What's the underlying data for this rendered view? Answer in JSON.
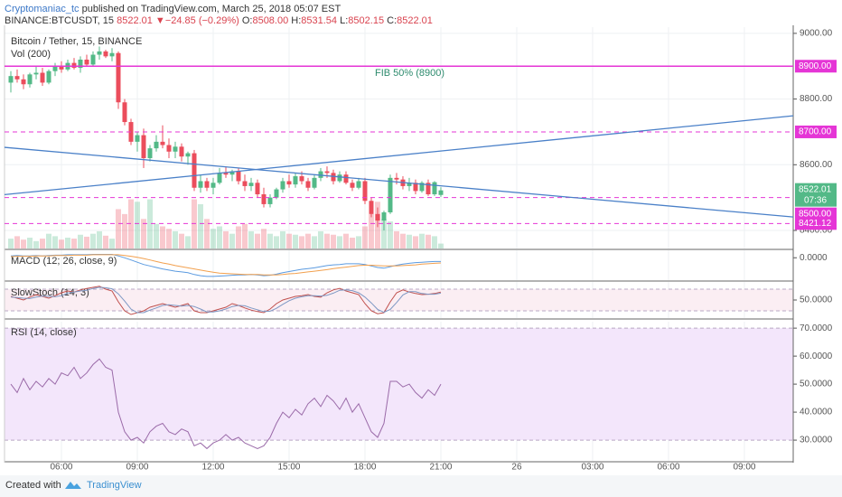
{
  "header": {
    "author": "Cryptomaniac_tc",
    "published": "published on TradingView.com, March 25, 2018 05:07 EST",
    "symbol": "BINANCE:BTCUSDT, 15",
    "arrow": "▼",
    "change": "−24.85 (−0.29%)",
    "o_label": "O:",
    "o": "8508.00",
    "h_label": "H:",
    "h": "8531.54",
    "l_label": "L:",
    "l": "8502.15",
    "c_label": "C:",
    "c": "8522.01"
  },
  "footer": {
    "created": "Created with",
    "brand": "TradingView"
  },
  "chart_data": [
    {
      "type": "candlestick",
      "title": "Bitcoin / Tether, 15, BINANCE",
      "volume_title": "Vol (200)",
      "up_color": "#53b987",
      "down_color": "#eb4d5c",
      "x": [
        4,
        4.25,
        4.5,
        4.75,
        5,
        5.25,
        5.5,
        5.75,
        6,
        6.25,
        6.5,
        6.75,
        7,
        7.25,
        7.5,
        7.75,
        8,
        8.25,
        8.5,
        8.75,
        9,
        9.25,
        9.5,
        9.75,
        10,
        10.25,
        10.5,
        10.75,
        11,
        11.25,
        11.5,
        11.75,
        12,
        12.25,
        12.5,
        12.75,
        13,
        13.25,
        13.5,
        13.75,
        14,
        14.25,
        14.5,
        14.75,
        15,
        15.25,
        15.5,
        15.75,
        16,
        16.25,
        16.5,
        16.75,
        17,
        17.25,
        17.5,
        17.75,
        18,
        18.25,
        18.5,
        18.75,
        19,
        19.25,
        19.5,
        19.75,
        20,
        20.25,
        20.5,
        20.75,
        21
      ],
      "ohlc": [
        [
          8850,
          8885,
          8820,
          8870
        ],
        [
          8870,
          8890,
          8850,
          8860
        ],
        [
          8860,
          8875,
          8830,
          8845
        ],
        [
          8845,
          8880,
          8835,
          8875
        ],
        [
          8875,
          8900,
          8860,
          8880
        ],
        [
          8880,
          8895,
          8840,
          8850
        ],
        [
          8850,
          8890,
          8845,
          8885
        ],
        [
          8885,
          8910,
          8870,
          8900
        ],
        [
          8900,
          8915,
          8880,
          8890
        ],
        [
          8890,
          8920,
          8885,
          8910
        ],
        [
          8910,
          8925,
          8890,
          8895
        ],
        [
          8895,
          8930,
          8880,
          8920
        ],
        [
          8920,
          8935,
          8900,
          8905
        ],
        [
          8905,
          8945,
          8900,
          8935
        ],
        [
          8935,
          8960,
          8920,
          8945
        ],
        [
          8945,
          8950,
          8925,
          8930
        ],
        [
          8930,
          8955,
          8915,
          8940
        ],
        [
          8940,
          8945,
          8770,
          8790
        ],
        [
          8790,
          8800,
          8720,
          8730
        ],
        [
          8730,
          8740,
          8660,
          8670
        ],
        [
          8670,
          8700,
          8640,
          8690
        ],
        [
          8690,
          8710,
          8590,
          8620
        ],
        [
          8620,
          8660,
          8610,
          8650
        ],
        [
          8650,
          8690,
          8640,
          8670
        ],
        [
          8670,
          8720,
          8650,
          8660
        ],
        [
          8660,
          8680,
          8620,
          8640
        ],
        [
          8640,
          8670,
          8620,
          8655
        ],
        [
          8655,
          8665,
          8610,
          8625
        ],
        [
          8625,
          8640,
          8600,
          8635
        ],
        [
          8635,
          8645,
          8520,
          8530
        ],
        [
          8530,
          8570,
          8515,
          8550
        ],
        [
          8550,
          8560,
          8520,
          8530
        ],
        [
          8530,
          8560,
          8510,
          8545
        ],
        [
          8545,
          8590,
          8540,
          8575
        ],
        [
          8575,
          8595,
          8560,
          8570
        ],
        [
          8570,
          8585,
          8550,
          8580
        ],
        [
          8580,
          8590,
          8540,
          8550
        ],
        [
          8550,
          8570,
          8520,
          8535
        ],
        [
          8535,
          8560,
          8520,
          8545
        ],
        [
          8545,
          8555,
          8500,
          8510
        ],
        [
          8510,
          8530,
          8470,
          8480
        ],
        [
          8480,
          8510,
          8470,
          8500
        ],
        [
          8500,
          8530,
          8495,
          8525
        ],
        [
          8525,
          8560,
          8515,
          8550
        ],
        [
          8550,
          8570,
          8530,
          8540
        ],
        [
          8540,
          8575,
          8530,
          8565
        ],
        [
          8565,
          8580,
          8540,
          8550
        ],
        [
          8550,
          8560,
          8520,
          8530
        ],
        [
          8530,
          8570,
          8525,
          8560
        ],
        [
          8560,
          8590,
          8550,
          8580
        ],
        [
          8580,
          8595,
          8560,
          8575
        ],
        [
          8575,
          8585,
          8540,
          8550
        ],
        [
          8550,
          8580,
          8545,
          8570
        ],
        [
          8570,
          8580,
          8540,
          8545
        ],
        [
          8545,
          8555,
          8520,
          8530
        ],
        [
          8530,
          8560,
          8525,
          8550
        ],
        [
          8550,
          8560,
          8480,
          8490
        ],
        [
          8490,
          8500,
          8440,
          8450
        ],
        [
          8450,
          8470,
          8410,
          8430
        ],
        [
          8430,
          8460,
          8400,
          8455
        ],
        [
          8455,
          8570,
          8450,
          8560
        ],
        [
          8560,
          8575,
          8540,
          8555
        ],
        [
          8555,
          8565,
          8525,
          8535
        ],
        [
          8535,
          8560,
          8520,
          8545
        ],
        [
          8545,
          8555,
          8510,
          8520
        ],
        [
          8520,
          8550,
          8515,
          8545
        ],
        [
          8545,
          8555,
          8505,
          8510
        ],
        [
          8510,
          8550,
          8505,
          8546.86
        ],
        [
          8508.0,
          8531.54,
          8502.15,
          8522.01
        ]
      ],
      "volume": [
        20,
        25,
        18,
        22,
        15,
        20,
        30,
        25,
        18,
        22,
        20,
        28,
        24,
        30,
        35,
        26,
        20,
        80,
        70,
        100,
        95,
        60,
        100,
        50,
        45,
        40,
        35,
        30,
        25,
        100,
        90,
        60,
        40,
        45,
        35,
        30,
        45,
        50,
        35,
        30,
        40,
        30,
        25,
        35,
        30,
        28,
        25,
        30,
        25,
        35,
        30,
        28,
        25,
        30,
        22,
        25,
        45,
        70,
        95,
        60,
        55,
        35,
        30,
        28,
        25,
        30,
        28,
        25,
        10
      ],
      "vlim": [
        0,
        450
      ],
      "xlim": [
        3.75,
        34.93
      ],
      "xticks": [
        {
          "value": 6,
          "label": "06:00"
        },
        {
          "value": 9,
          "label": "09:00"
        },
        {
          "value": 12,
          "label": "12:00"
        },
        {
          "value": 15,
          "label": "15:00"
        },
        {
          "value": 18,
          "label": "18:00"
        },
        {
          "value": 21,
          "label": "21:00"
        },
        {
          "value": 24,
          "label": "26"
        },
        {
          "value": 27,
          "label": "03:00"
        },
        {
          "value": 30,
          "label": "06:00"
        },
        {
          "value": 33,
          "label": "09:00"
        }
      ],
      "ylim": [
        8345,
        9019
      ],
      "yticks": [
        {
          "value": 9000,
          "label": "9000.00"
        },
        {
          "value": 8800,
          "label": "8800.00"
        },
        {
          "value": 8600,
          "label": "8600.00"
        },
        {
          "value": 8400,
          "label": "8400.00"
        }
      ],
      "grid": true,
      "hlines": [
        {
          "value": 8900,
          "label": "8900.00",
          "style": "solid"
        },
        {
          "value": 8700,
          "label": "8700.00",
          "style": "dashed"
        },
        {
          "value": 8500,
          "label": "8500.00",
          "style": "dashed"
        },
        {
          "value": 8421.12,
          "label": "8421.12",
          "style": "dashed"
        }
      ],
      "hline_color": "#e535d6",
      "annotation": "FIB 50% (8900)",
      "countdown": "07:36",
      "trendlines": [
        {
          "x": [
            3.75,
            34.93
          ],
          "values": [
            8509,
            8749
          ],
          "color": "#4a80c8"
        },
        {
          "x": [
            3.75,
            34.93
          ],
          "values": [
            8653,
            8441
          ],
          "color": "#4a80c8"
        }
      ]
    },
    {
      "type": "line",
      "title": "MACD (12; 26, close, 9)",
      "ylim": [
        -60,
        20
      ],
      "yticks": [
        {
          "value": 0,
          "label": "0.0000"
        }
      ],
      "series": [
        {
          "color": "#5c9be0",
          "values": [
            5,
            6,
            5,
            5,
            6,
            5,
            6,
            7,
            7,
            8,
            8,
            8,
            8,
            9,
            9,
            9,
            9,
            5,
            0,
            -6,
            -12,
            -18,
            -22,
            -26,
            -30,
            -33,
            -36,
            -38,
            -40,
            -45,
            -48,
            -50,
            -50,
            -49,
            -48,
            -47,
            -46,
            -46,
            -45,
            -46,
            -48,
            -47,
            -44,
            -40,
            -37,
            -34,
            -31,
            -29,
            -27,
            -24,
            -21,
            -19,
            -18,
            -16,
            -16,
            -16,
            -18,
            -22,
            -26,
            -28,
            -24,
            -20,
            -17,
            -15,
            -13,
            -12,
            -11,
            -10,
            -10
          ]
        },
        {
          "color": "#f2a04e",
          "values": [
            3,
            4,
            4,
            4,
            5,
            5,
            5,
            6,
            6,
            6,
            7,
            7,
            7,
            8,
            8,
            8,
            8,
            8,
            6,
            4,
            1,
            -2,
            -6,
            -10,
            -14,
            -17,
            -21,
            -24,
            -27,
            -30,
            -33,
            -36,
            -39,
            -41,
            -42,
            -43,
            -44,
            -45,
            -45,
            -45,
            -46,
            -46,
            -46,
            -45,
            -43,
            -42,
            -40,
            -38,
            -36,
            -34,
            -32,
            -29,
            -27,
            -25,
            -23,
            -21,
            -20,
            -20,
            -21,
            -22,
            -22,
            -22,
            -21,
            -20,
            -19,
            -17,
            -16,
            -15,
            -14
          ]
        }
      ]
    },
    {
      "type": "line",
      "title": "SlowStoch (14, 3)",
      "ylim": [
        0,
        100
      ],
      "yticks": [
        {
          "value": 50,
          "label": "50.0000"
        }
      ],
      "band": [
        20,
        80
      ],
      "band_color": "#fbeef3",
      "series": [
        {
          "color": "#c0504d",
          "values": [
            60,
            55,
            50,
            58,
            65,
            60,
            55,
            62,
            70,
            75,
            72,
            78,
            82,
            85,
            88,
            80,
            75,
            45,
            20,
            10,
            15,
            20,
            30,
            35,
            40,
            35,
            30,
            35,
            40,
            20,
            15,
            15,
            20,
            25,
            30,
            40,
            35,
            28,
            22,
            18,
            15,
            25,
            40,
            50,
            55,
            60,
            62,
            65,
            60,
            58,
            70,
            78,
            82,
            75,
            70,
            65,
            40,
            20,
            12,
            15,
            45,
            70,
            78,
            72,
            68,
            65,
            66,
            68,
            72
          ]
        },
        {
          "color": "#7e98c4",
          "values": [
            58,
            57,
            55,
            54,
            58,
            61,
            60,
            59,
            62,
            69,
            72,
            75,
            77,
            82,
            85,
            84,
            81,
            67,
            47,
            25,
            15,
            15,
            22,
            28,
            35,
            37,
            35,
            33,
            35,
            32,
            25,
            17,
            17,
            20,
            25,
            32,
            35,
            34,
            28,
            23,
            18,
            19,
            27,
            38,
            48,
            55,
            59,
            62,
            62,
            61,
            63,
            69,
            77,
            78,
            76,
            70,
            58,
            42,
            24,
            16,
            24,
            43,
            64,
            73,
            73,
            68,
            66,
            66,
            69
          ]
        }
      ]
    },
    {
      "type": "line",
      "title": "RSI (14, close)",
      "ylim": [
        22.6,
        72.3
      ],
      "band": [
        30,
        70
      ],
      "band_color": "#f3e6fb",
      "yticks": [
        {
          "value": 70,
          "label": "70.0000"
        },
        {
          "value": 60,
          "label": "60.0000"
        },
        {
          "value": 50,
          "label": "50.0000"
        },
        {
          "value": 40,
          "label": "40.0000"
        },
        {
          "value": 30,
          "label": "30.0000"
        }
      ],
      "series": [
        {
          "color": "#9a6aa8",
          "values": [
            50,
            47,
            52,
            48,
            51,
            49,
            52,
            50,
            54,
            53,
            56,
            52,
            54,
            57,
            59,
            56,
            55,
            40,
            33,
            30,
            31,
            29,
            33,
            35,
            36,
            33,
            32,
            34,
            33,
            28,
            29,
            27,
            29,
            30,
            32,
            30,
            31,
            29,
            28,
            27,
            28,
            31,
            36,
            40,
            38,
            41,
            39,
            43,
            45,
            42,
            46,
            44,
            41,
            45,
            40,
            43,
            38,
            33,
            31,
            36,
            51,
            51,
            49,
            50,
            47,
            45,
            48,
            46,
            50
          ]
        }
      ]
    }
  ]
}
